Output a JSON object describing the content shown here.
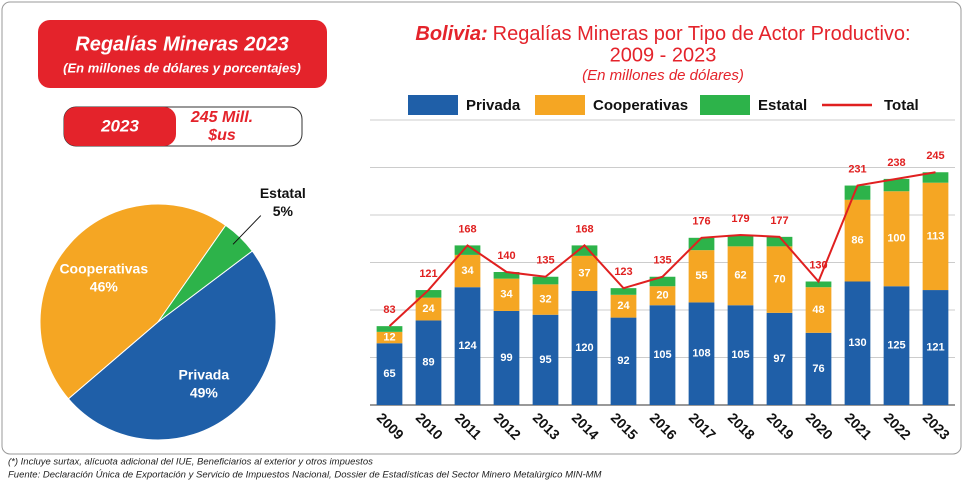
{
  "chart_data": [
    {
      "type": "pie",
      "title": "Regalías Mineras 2023",
      "subtitle": "(En millones de dólares y porcentajes)",
      "badge_year": "2023",
      "badge_total_line1": "245 Mill.",
      "badge_total_line2": "$us",
      "categories": [
        "Privada",
        "Cooperativas",
        "Estatal"
      ],
      "values": [
        49,
        46,
        5
      ],
      "value_labels": [
        "49%",
        "46%",
        "5%"
      ],
      "colors": [
        "#1f5fa8",
        "#f5a623",
        "#2db34a"
      ]
    },
    {
      "type": "stacked-bar-line",
      "title_emphasis": "Bolivia:",
      "title_line1": "Regalías Mineras por Tipo de Actor Productivo:",
      "title_line2": "2009 - 2023",
      "subtitle": "(En millones de dólares)",
      "categories": [
        "2009",
        "2010",
        "2011",
        "2012",
        "2013",
        "2014",
        "2015",
        "2016",
        "2017",
        "2018",
        "2019",
        "2020",
        "2021",
        "2022",
        "2023"
      ],
      "series": [
        {
          "name": "Privada",
          "color": "#1f5fa8",
          "values": [
            65,
            89,
            124,
            99,
            95,
            120,
            92,
            105,
            108,
            105,
            97,
            76,
            130,
            125,
            121
          ]
        },
        {
          "name": "Cooperativas",
          "color": "#f5a623",
          "values": [
            12,
            24,
            34,
            34,
            32,
            37,
            24,
            20,
            55,
            62,
            70,
            48,
            86,
            100,
            113
          ]
        },
        {
          "name": "Estatal",
          "color": "#2db34a",
          "values": [
            6,
            8,
            10,
            7,
            8,
            11,
            7,
            10,
            13,
            12,
            10,
            6,
            15,
            13,
            11
          ]
        }
      ],
      "line_series": {
        "name": "Total",
        "color": "#e02020",
        "values": [
          83,
          121,
          168,
          140,
          135,
          168,
          123,
          135,
          176,
          179,
          177,
          130,
          231,
          238,
          245
        ]
      },
      "ylim": [
        0,
        300
      ],
      "yticks": [
        50,
        100,
        150,
        200,
        250,
        300
      ],
      "grid": true
    }
  ],
  "footnotes": [
    "(*) Incluye surtax, alícuota adicional del IUE, Beneficiarios al exterior y otros impuestos",
    "Fuente: Declaración Única de Exportación y Servicio de Impuestos Nacional, Dossier de Estadísticas del Sector Minero Metalúrgico MIN-MM"
  ]
}
